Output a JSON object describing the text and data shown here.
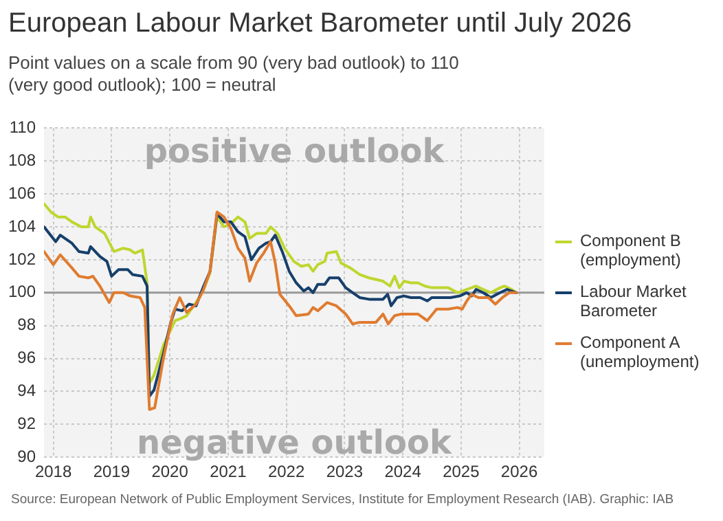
{
  "chart_data": {
    "type": "line",
    "title": "European Labour Market Barometer until July 2026",
    "subtitle": "Point values on a scale from 90 (very bad outlook) to 110 (very good outlook); 100 = neutral",
    "annotations": [
      "positive outlook",
      "negative outlook",
      "Source: European Network of Public Employment Services, Institute for Employment Research (IAB). Graphic: IAB"
    ],
    "xlim": [
      2018.34,
      2026.93
    ],
    "xticks": [
      {
        "value": 2018.5,
        "label": "2018"
      },
      {
        "value": 2019.5,
        "label": "2019"
      },
      {
        "value": 2020.5,
        "label": "2020"
      },
      {
        "value": 2021.5,
        "label": "2021"
      },
      {
        "value": 2022.5,
        "label": "2022"
      },
      {
        "value": 2023.5,
        "label": "2023"
      },
      {
        "value": 2024.5,
        "label": "2024"
      },
      {
        "value": 2025.5,
        "label": "2025"
      },
      {
        "value": 2026.5,
        "label": "2026"
      }
    ],
    "ylim": [
      90,
      110
    ],
    "yticks": [
      90,
      92,
      94,
      96,
      98,
      100,
      102,
      104,
      106,
      108,
      110
    ],
    "grid": true,
    "legend": "right",
    "marker": "none",
    "line_style": "solid",
    "ref_lines": [
      {
        "axis": "y",
        "value": 100,
        "color": "#999999"
      }
    ],
    "series": [
      {
        "name": "Component B (employment)",
        "color": "#bfd62f",
        "x": [
          2018.34,
          2018.46,
          2018.58,
          2018.7,
          2018.82,
          2018.98,
          2019.1,
          2019.14,
          2019.22,
          2019.38,
          2019.54,
          2019.7,
          2019.82,
          2019.9,
          2020.03,
          2020.11,
          2020.15,
          2020.23,
          2020.39,
          2020.59,
          2020.67,
          2020.79,
          2020.95,
          2021.07,
          2021.19,
          2021.31,
          2021.43,
          2021.55,
          2021.67,
          2021.79,
          2021.87,
          2021.99,
          2022.15,
          2022.23,
          2022.35,
          2022.47,
          2022.63,
          2022.76,
          2022.88,
          2022.96,
          2023.04,
          2023.16,
          2023.2,
          2023.36,
          2023.44,
          2023.6,
          2023.76,
          2023.92,
          2024.16,
          2024.28,
          2024.36,
          2024.44,
          2024.52,
          2024.64,
          2024.76,
          2024.88,
          2025.0,
          2025.12,
          2025.28,
          2025.44,
          2025.6,
          2025.76,
          2025.88,
          2026.01,
          2026.17,
          2026.25,
          2026.37,
          2026.45
        ],
        "values": [
          105.4,
          104.9,
          104.6,
          104.6,
          104.3,
          104.0,
          104.0,
          104.6,
          104.0,
          103.6,
          102.5,
          102.7,
          102.6,
          102.4,
          102.6,
          100.6,
          94.5,
          95.0,
          96.8,
          98.3,
          98.4,
          98.6,
          99.4,
          100.1,
          101.2,
          104.6,
          104.0,
          104.2,
          104.6,
          104.3,
          103.3,
          103.6,
          103.6,
          104.0,
          103.6,
          102.7,
          101.9,
          101.6,
          101.7,
          101.3,
          101.7,
          101.9,
          102.4,
          102.5,
          101.8,
          101.5,
          101.1,
          100.9,
          100.7,
          100.4,
          101.0,
          100.3,
          100.7,
          100.6,
          100.6,
          100.4,
          100.3,
          100.3,
          100.3,
          100.0,
          100.2,
          100.4,
          100.2,
          100.0,
          100.3,
          100.4,
          100.2,
          100.0
        ]
      },
      {
        "name": "Labour Market Barometer",
        "color": "#163f6b",
        "x": [
          2018.34,
          2018.54,
          2018.62,
          2018.82,
          2018.94,
          2019.1,
          2019.14,
          2019.3,
          2019.42,
          2019.5,
          2019.62,
          2019.78,
          2019.86,
          2020.03,
          2020.11,
          2020.15,
          2020.23,
          2020.39,
          2020.51,
          2020.59,
          2020.71,
          2020.83,
          2020.95,
          2021.07,
          2021.19,
          2021.31,
          2021.43,
          2021.55,
          2021.67,
          2021.79,
          2021.9,
          2022.03,
          2022.15,
          2022.23,
          2022.31,
          2022.43,
          2022.55,
          2022.67,
          2022.8,
          2022.88,
          2022.96,
          2023.04,
          2023.16,
          2023.24,
          2023.4,
          2023.52,
          2023.64,
          2023.76,
          2023.92,
          2024.16,
          2024.24,
          2024.3,
          2024.4,
          2024.52,
          2024.64,
          2024.8,
          2024.92,
          2025.0,
          2025.16,
          2025.32,
          2025.48,
          2025.6,
          2025.68,
          2025.76,
          2025.88,
          2026.01,
          2026.17,
          2026.29,
          2026.45
        ],
        "values": [
          104.0,
          103.1,
          103.5,
          103.0,
          102.5,
          102.4,
          102.8,
          102.2,
          101.9,
          101.0,
          101.4,
          101.4,
          101.1,
          101.0,
          100.4,
          93.7,
          94.1,
          96.3,
          98.1,
          99.0,
          98.9,
          99.3,
          99.2,
          100.3,
          101.3,
          104.8,
          104.3,
          104.3,
          103.7,
          103.4,
          102.0,
          102.7,
          103.0,
          103.1,
          103.5,
          102.5,
          101.3,
          100.6,
          100.1,
          100.3,
          100.0,
          100.5,
          100.5,
          100.9,
          100.9,
          100.3,
          100.0,
          99.7,
          99.6,
          99.6,
          99.9,
          99.2,
          99.7,
          99.8,
          99.7,
          99.7,
          99.5,
          99.7,
          99.7,
          99.7,
          99.8,
          100.0,
          99.8,
          100.2,
          100.0,
          99.7,
          100.0,
          100.2,
          100.0
        ]
      },
      {
        "name": "Component A (unemployment)",
        "color": "#e07b2f",
        "x": [
          2018.34,
          2018.5,
          2018.62,
          2018.82,
          2018.94,
          2019.1,
          2019.18,
          2019.3,
          2019.46,
          2019.54,
          2019.7,
          2019.82,
          2019.99,
          2020.07,
          2020.15,
          2020.24,
          2020.39,
          2020.55,
          2020.67,
          2020.79,
          2020.95,
          2021.07,
          2021.19,
          2021.31,
          2021.43,
          2021.55,
          2021.67,
          2021.79,
          2021.87,
          2021.99,
          2022.11,
          2022.23,
          2022.31,
          2022.39,
          2022.55,
          2022.67,
          2022.88,
          2022.96,
          2023.04,
          2023.2,
          2023.36,
          2023.52,
          2023.64,
          2023.76,
          2023.92,
          2024.04,
          2024.16,
          2024.25,
          2024.36,
          2024.48,
          2024.64,
          2024.76,
          2024.92,
          2025.08,
          2025.28,
          2025.44,
          2025.52,
          2025.6,
          2025.68,
          2025.8,
          2025.97,
          2026.09,
          2026.21,
          2026.33,
          2026.45
        ],
        "values": [
          102.5,
          101.7,
          102.3,
          101.5,
          101.0,
          100.9,
          101.0,
          100.4,
          99.4,
          100.0,
          100.0,
          99.8,
          99.7,
          99.1,
          92.9,
          93.0,
          96.0,
          98.7,
          99.7,
          98.8,
          99.3,
          100.1,
          101.3,
          104.9,
          104.6,
          103.9,
          102.7,
          102.1,
          100.7,
          101.8,
          102.4,
          103.1,
          101.8,
          99.9,
          99.2,
          98.6,
          98.7,
          99.1,
          98.9,
          99.4,
          99.2,
          98.7,
          98.1,
          98.2,
          98.2,
          98.2,
          98.7,
          98.1,
          98.6,
          98.7,
          98.7,
          98.7,
          98.3,
          99.0,
          99.0,
          99.1,
          99.0,
          99.5,
          99.9,
          99.7,
          99.7,
          99.3,
          99.7,
          100.0,
          100.0
        ]
      }
    ]
  }
}
